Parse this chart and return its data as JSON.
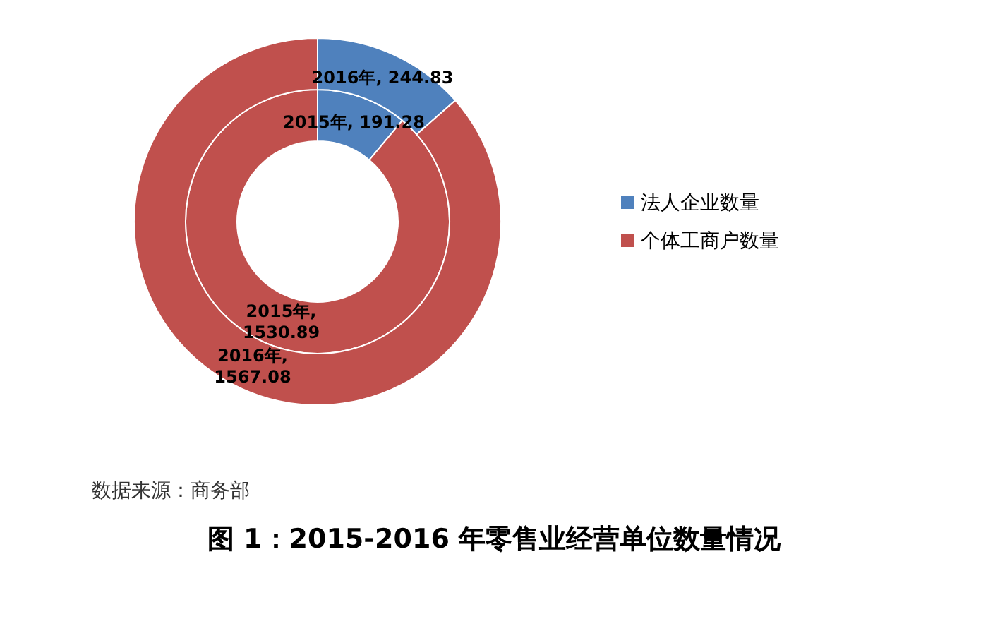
{
  "chart_data": {
    "type": "donut",
    "title": "图 1：2015-2016 年零售业经营单位数量情况",
    "annotations": [
      "数据来源：商务部"
    ],
    "categories": [
      "法人企业数量",
      "个体工商户数量"
    ],
    "colors": [
      "#4f81bd",
      "#c0504d"
    ],
    "series": [
      {
        "values": [
          191.28,
          1530.89
        ],
        "value_labels": [
          "2015年, 191.28",
          "2015年, 1530.89"
        ]
      },
      {
        "values": [
          244.83,
          1567.08
        ],
        "value_labels": [
          "2016年, 244.83",
          "2016年, 1567.08"
        ]
      }
    ],
    "legend": "right"
  }
}
